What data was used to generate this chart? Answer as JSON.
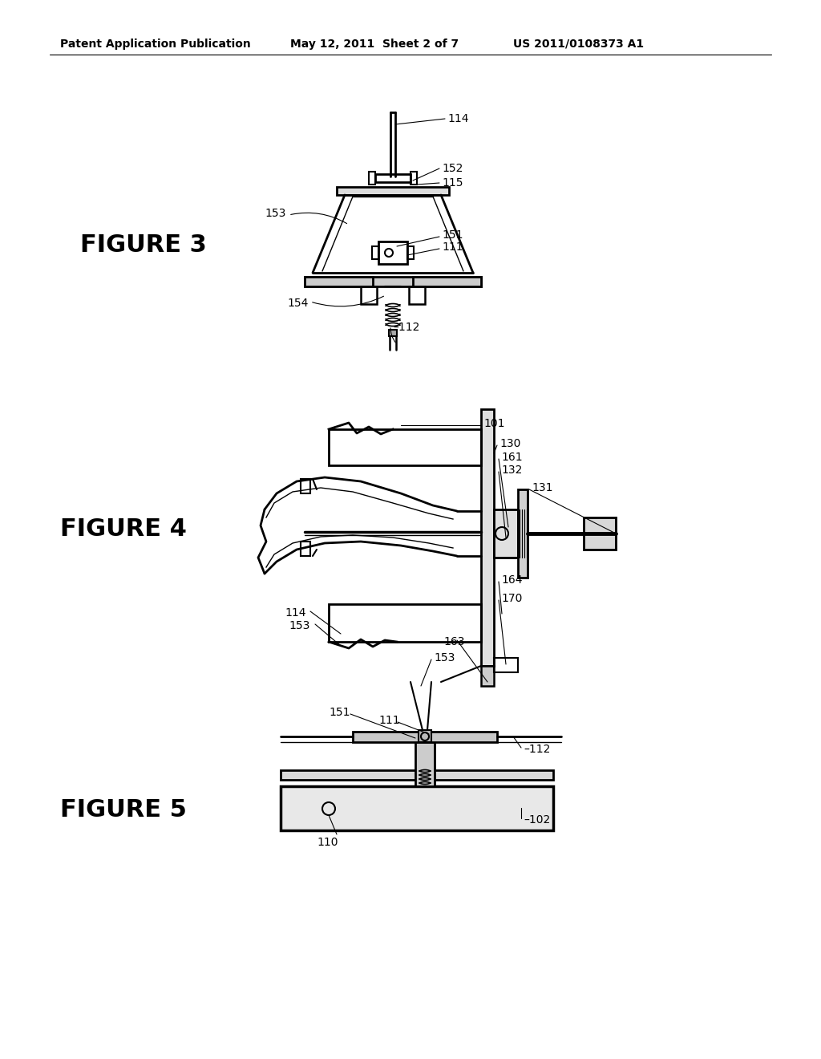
{
  "background_color": "#ffffff",
  "header_text": "Patent Application Publication",
  "header_date": "May 12, 2011  Sheet 2 of 7",
  "header_patent": "US 2011/0108373 A1",
  "figure3_label": "FIGURE 3",
  "figure4_label": "FIGURE 4",
  "figure5_label": "FIGURE 5",
  "line_color": "#000000",
  "text_color": "#000000",
  "figure_label_fontsize": 22,
  "label_fontsize": 10,
  "header_fontsize": 10
}
